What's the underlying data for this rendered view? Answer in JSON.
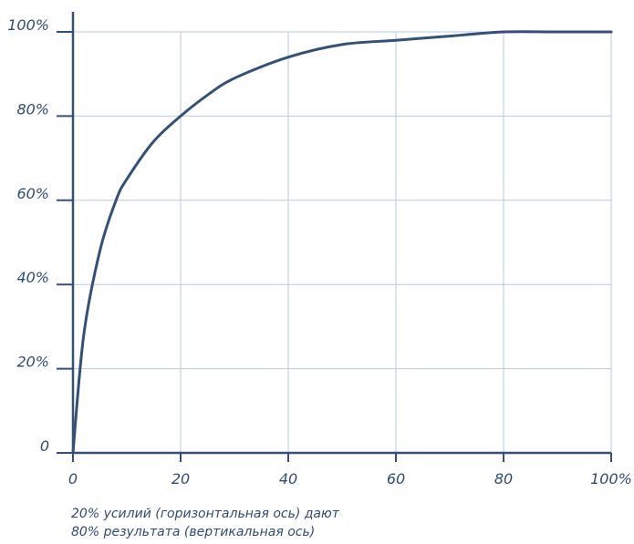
{
  "chart_data": {
    "type": "line",
    "title": "",
    "xlabel": "",
    "ylabel": "",
    "xlim": [
      0,
      100
    ],
    "ylim": [
      0,
      100
    ],
    "x_ticks": [
      "0",
      "20",
      "40",
      "60",
      "80",
      "100%"
    ],
    "y_ticks": [
      "0",
      "20%",
      "40%",
      "60%",
      "80%",
      "100%"
    ],
    "grid": true,
    "series": [
      {
        "color": "#33507a",
        "x": [
          0,
          2,
          5,
          8,
          10,
          15,
          20,
          25,
          30,
          40,
          50,
          60,
          70,
          80,
          90,
          100
        ],
        "y": [
          0,
          28,
          48,
          60,
          65,
          74,
          80,
          85,
          89,
          94,
          97,
          98,
          99,
          100,
          100,
          100
        ]
      }
    ]
  },
  "caption": {
    "line1": "20% усилий (горизонтальная ось) дают",
    "line2": "80% результата (вертикальная ось)"
  },
  "colors": {
    "axis": "#33507a",
    "grid": "#b9c9dc",
    "text": "#2f4d73"
  }
}
